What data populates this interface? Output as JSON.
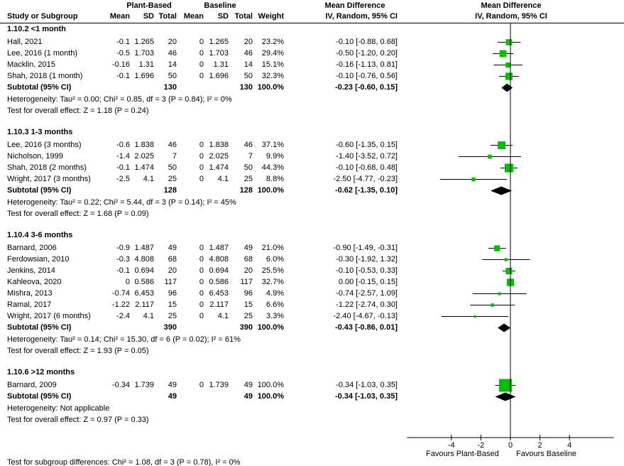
{
  "chart_data": {
    "type": "forest",
    "headers": {
      "group1": "Plant-Based",
      "group2": "Baseline",
      "study": "Study or Subgroup",
      "mean": "Mean",
      "sd": "SD",
      "total": "Total",
      "weight": "Weight",
      "md_title": "Mean Difference",
      "md_method": "IV, Random, 95% CI"
    },
    "xlim": [
      -7,
      7
    ],
    "ticks": [
      "-4",
      "-2",
      "0",
      "2",
      "4"
    ],
    "favours_left": "Favours Plant-Based",
    "favours_right": "Favours Baseline",
    "subgroup_test": "Test for subgroup differences: Chi² = 1.08, df = 3 (P = 0.78), I² = 0%",
    "subgroups": [
      {
        "title": "1.10.2 <1 month",
        "studies": [
          {
            "name": "Hall, 2021",
            "m1": "-0.1",
            "sd1": "1.265",
            "n1": "20",
            "m2": "0",
            "sd2": "1.265",
            "n2": "20",
            "weight": "23.2%",
            "ci": "-0.10 [-0.88, 0.68]",
            "md": -0.1,
            "lo": -0.88,
            "hi": 0.68,
            "w": 23.2
          },
          {
            "name": "Lee, 2016 (1 month)",
            "m1": "-0.5",
            "sd1": "1.703",
            "n1": "46",
            "m2": "0",
            "sd2": "1.703",
            "n2": "46",
            "weight": "29.4%",
            "ci": "-0.50 [-1.20, 0.20]",
            "md": -0.5,
            "lo": -1.2,
            "hi": 0.2,
            "w": 29.4
          },
          {
            "name": "Macklin, 2015",
            "m1": "-0.16",
            "sd1": "1.31",
            "n1": "14",
            "m2": "0",
            "sd2": "1.31",
            "n2": "14",
            "weight": "15.1%",
            "ci": "-0.16 [-1.13, 0.81]",
            "md": -0.16,
            "lo": -1.13,
            "hi": 0.81,
            "w": 15.1
          },
          {
            "name": "Shah, 2018 (1 month)",
            "m1": "-0.1",
            "sd1": "1.696",
            "n1": "50",
            "m2": "0",
            "sd2": "1.696",
            "n2": "50",
            "weight": "32.3%",
            "ci": "-0.10 [-0.76, 0.56]",
            "md": -0.1,
            "lo": -0.76,
            "hi": 0.56,
            "w": 32.3
          }
        ],
        "subtotal": {
          "label": "Subtotal (95% CI)",
          "n1": "130",
          "n2": "130",
          "weight": "100.0%",
          "ci": "-0.23 [-0.60, 0.15]",
          "md": -0.23,
          "lo": -0.6,
          "hi": 0.15
        },
        "heterogeneity": "Heterogeneity: Tau² = 0.00; Chi² = 0.85, df = 3 (P = 0.84); I² = 0%",
        "overall": "Test for overall effect: Z = 1.18 (P = 0.24)"
      },
      {
        "title": "1.10.3 1-3 months",
        "studies": [
          {
            "name": "Lee, 2016 (3 months)",
            "m1": "-0.6",
            "sd1": "1.838",
            "n1": "46",
            "m2": "0",
            "sd2": "1.838",
            "n2": "46",
            "weight": "37.1%",
            "ci": "-0.60 [-1.35, 0.15]",
            "md": -0.6,
            "lo": -1.35,
            "hi": 0.15,
            "w": 37.1
          },
          {
            "name": "Nicholson, 1999",
            "m1": "-1.4",
            "sd1": "2.025",
            "n1": "7",
            "m2": "0",
            "sd2": "2.025",
            "n2": "7",
            "weight": "9.9%",
            "ci": "-1.40 [-3.52, 0.72]",
            "md": -1.4,
            "lo": -3.52,
            "hi": 0.72,
            "w": 9.9
          },
          {
            "name": "Shah, 2018 (2 months)",
            "m1": "-0.1",
            "sd1": "1.474",
            "n1": "50",
            "m2": "0",
            "sd2": "1.474",
            "n2": "50",
            "weight": "44.3%",
            "ci": "-0.10 [-0.68, 0.48]",
            "md": -0.1,
            "lo": -0.68,
            "hi": 0.48,
            "w": 44.3
          },
          {
            "name": "Wright, 2017 (3 months)",
            "m1": "-2.5",
            "sd1": "4.1",
            "n1": "25",
            "m2": "0",
            "sd2": "4.1",
            "n2": "25",
            "weight": "8.8%",
            "ci": "-2.50 [-4.77, -0.23]",
            "md": -2.5,
            "lo": -4.77,
            "hi": -0.23,
            "w": 8.8
          }
        ],
        "subtotal": {
          "label": "Subtotal (95% CI)",
          "n1": "128",
          "n2": "128",
          "weight": "100.0%",
          "ci": "-0.62 [-1.35, 0.10]",
          "md": -0.62,
          "lo": -1.35,
          "hi": 0.1
        },
        "heterogeneity": "Heterogeneity: Tau² = 0.22; Chi² = 5.44, df = 3 (P = 0.14); I² = 45%",
        "overall": "Test for overall effect: Z = 1.68 (P = 0.09)"
      },
      {
        "title": "1.10.4 3-6 months",
        "studies": [
          {
            "name": "Barnard, 2006",
            "m1": "-0.9",
            "sd1": "1.487",
            "n1": "49",
            "m2": "0",
            "sd2": "1.487",
            "n2": "49",
            "weight": "21.0%",
            "ci": "-0.90 [-1.49, -0.31]",
            "md": -0.9,
            "lo": -1.49,
            "hi": -0.31,
            "w": 21.0
          },
          {
            "name": "Ferdowsian, 2010",
            "m1": "-0.3",
            "sd1": "4.808",
            "n1": "68",
            "m2": "0",
            "sd2": "4.808",
            "n2": "68",
            "weight": "6.0%",
            "ci": "-0.30 [-1.92, 1.32]",
            "md": -0.3,
            "lo": -1.92,
            "hi": 1.32,
            "w": 6.0
          },
          {
            "name": "Jenkins, 2014",
            "m1": "-0.1",
            "sd1": "0.694",
            "n1": "20",
            "m2": "0",
            "sd2": "0.694",
            "n2": "20",
            "weight": "25.5%",
            "ci": "-0.10 [-0.53, 0.33]",
            "md": -0.1,
            "lo": -0.53,
            "hi": 0.33,
            "w": 25.5
          },
          {
            "name": "Kahleova, 2020",
            "m1": "0",
            "sd1": "0.586",
            "n1": "117",
            "m2": "0",
            "sd2": "0.586",
            "n2": "117",
            "weight": "32.7%",
            "ci": "0.00 [-0.15, 0.15]",
            "md": 0.0,
            "lo": -0.15,
            "hi": 0.15,
            "w": 32.7
          },
          {
            "name": "Mishra, 2013",
            "m1": "-0.74",
            "sd1": "6.453",
            "n1": "96",
            "m2": "0",
            "sd2": "6.453",
            "n2": "96",
            "weight": "4.9%",
            "ci": "-0.74 [-2.57, 1.09]",
            "md": -0.74,
            "lo": -2.57,
            "hi": 1.09,
            "w": 4.9
          },
          {
            "name": "Ramal, 2017",
            "m1": "-1.22",
            "sd1": "2.117",
            "n1": "15",
            "m2": "0",
            "sd2": "2.117",
            "n2": "15",
            "weight": "6.6%",
            "ci": "-1.22 [-2.74, 0.30]",
            "md": -1.22,
            "lo": -2.74,
            "hi": 0.3,
            "w": 6.6
          },
          {
            "name": "Wright, 2017 (6 months)",
            "m1": "-2.4",
            "sd1": "4.1",
            "n1": "25",
            "m2": "0",
            "sd2": "4.1",
            "n2": "25",
            "weight": "3.3%",
            "ci": "-2.40 [-4.67, -0.13]",
            "md": -2.4,
            "lo": -4.67,
            "hi": -0.13,
            "w": 3.3
          }
        ],
        "subtotal": {
          "label": "Subtotal (95% CI)",
          "n1": "390",
          "n2": "390",
          "weight": "100.0%",
          "ci": "-0.43 [-0.86, 0.01]",
          "md": -0.43,
          "lo": -0.86,
          "hi": 0.01
        },
        "heterogeneity": "Heterogeneity: Tau² = 0.14; Chi² = 15.30, df = 6 (P = 0.02); I² = 61%",
        "overall": "Test for overall effect: Z = 1.93 (P = 0.05)"
      },
      {
        "title": "1.10.6 >12 months",
        "studies": [
          {
            "name": "Barnard, 2009",
            "m1": "-0.34",
            "sd1": "1.739",
            "n1": "49",
            "m2": "0",
            "sd2": "1.739",
            "n2": "49",
            "weight": "100.0%",
            "ci": "-0.34 [-1.03, 0.35]",
            "md": -0.34,
            "lo": -1.03,
            "hi": 0.35,
            "w": 100.0
          }
        ],
        "subtotal": {
          "label": "Subtotal (95% CI)",
          "n1": "49",
          "n2": "49",
          "weight": "100.0%",
          "ci": "-0.34 [-1.03, 0.35]",
          "md": -0.34,
          "lo": -1.03,
          "hi": 0.35
        },
        "heterogeneity": "Heterogeneity: Not applicable",
        "overall": "Test for overall effect: Z = 0.97 (P = 0.33)"
      }
    ],
    "colors": {
      "square": "#00c000",
      "diamond": "#000000",
      "line": "#000000"
    }
  }
}
